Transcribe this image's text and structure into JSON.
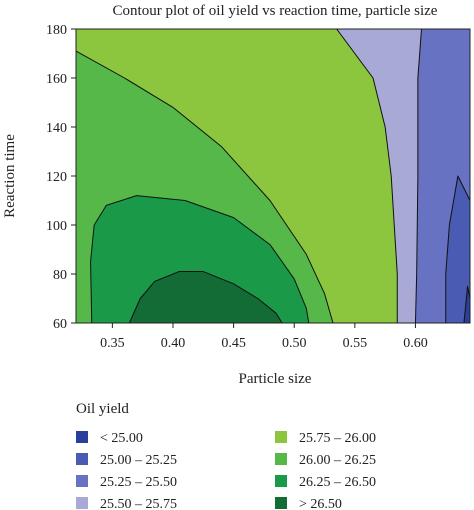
{
  "chart_data": {
    "type": "contour",
    "title": "Contour plot of oil yield vs reaction time, particle size",
    "xlabel": "Particle size",
    "ylabel": "Reaction time",
    "xlim": [
      0.32,
      0.645
    ],
    "ylim": [
      60,
      180
    ],
    "x_ticks": [
      0.35,
      0.4,
      0.45,
      0.5,
      0.55,
      0.6
    ],
    "x_tick_labels": [
      "0.35",
      "0.40",
      "0.45",
      "0.50",
      "0.55",
      "0.60"
    ],
    "y_ticks": [
      60,
      80,
      100,
      120,
      140,
      160,
      180
    ],
    "y_tick_labels": [
      "60",
      "80",
      "100",
      "120",
      "140",
      "160",
      "180"
    ],
    "legend_title": "Oil yield",
    "legend_position": "bottom",
    "levels": [
      {
        "label": "< 25.00",
        "color": "#2a3f9c"
      },
      {
        "label": "25.00 – 25.25",
        "color": "#4a5bb3"
      },
      {
        "label": "25.25 – 25.50",
        "color": "#6872c2"
      },
      {
        "label": "25.50 – 25.75",
        "color": "#a9a9d6"
      },
      {
        "label": "25.75 – 26.00",
        "color": "#8cc63f"
      },
      {
        "label": "26.00 – 26.25",
        "color": "#55b848"
      },
      {
        "label": "26.25 – 26.50",
        "color": "#1a9a48"
      },
      {
        "label": "> 26.50",
        "color": "#136b35"
      }
    ],
    "regions": [
      {
        "level": 4,
        "points": [
          [
            0.32,
            180
          ],
          [
            0.645,
            180
          ],
          [
            0.645,
            60
          ],
          [
            0.32,
            60
          ]
        ]
      },
      {
        "level": 3,
        "points": [
          [
            0.535,
            180
          ],
          [
            0.645,
            180
          ],
          [
            0.645,
            60
          ],
          [
            0.585,
            60
          ],
          [
            0.585,
            80
          ],
          [
            0.58,
            120
          ],
          [
            0.575,
            140
          ],
          [
            0.565,
            160
          ]
        ]
      },
      {
        "level": 2,
        "points": [
          [
            0.605,
            180
          ],
          [
            0.645,
            180
          ],
          [
            0.645,
            60
          ],
          [
            0.6,
            60
          ],
          [
            0.601,
            80
          ],
          [
            0.602,
            120
          ],
          [
            0.602,
            160
          ]
        ]
      },
      {
        "level": 1,
        "points": [
          [
            0.635,
            120
          ],
          [
            0.645,
            110
          ],
          [
            0.645,
            60
          ],
          [
            0.625,
            60
          ],
          [
            0.625,
            80
          ],
          [
            0.628,
            100
          ]
        ]
      },
      {
        "level": 0,
        "points": [
          [
            0.643,
            75
          ],
          [
            0.645,
            70
          ],
          [
            0.645,
            60
          ],
          [
            0.64,
            60
          ]
        ]
      },
      {
        "level": 5,
        "points": [
          [
            0.32,
            171
          ],
          [
            0.36,
            160
          ],
          [
            0.4,
            148
          ],
          [
            0.44,
            132
          ],
          [
            0.48,
            110
          ],
          [
            0.51,
            88
          ],
          [
            0.525,
            72
          ],
          [
            0.532,
            60
          ],
          [
            0.32,
            60
          ]
        ]
      },
      {
        "level": 6,
        "points": [
          [
            0.333,
            60
          ],
          [
            0.332,
            85
          ],
          [
            0.335,
            100
          ],
          [
            0.345,
            108
          ],
          [
            0.37,
            112
          ],
          [
            0.41,
            110
          ],
          [
            0.45,
            103
          ],
          [
            0.48,
            92
          ],
          [
            0.5,
            78
          ],
          [
            0.51,
            66
          ],
          [
            0.512,
            60
          ]
        ]
      },
      {
        "level": 7,
        "points": [
          [
            0.364,
            60
          ],
          [
            0.373,
            70
          ],
          [
            0.385,
            77
          ],
          [
            0.405,
            81
          ],
          [
            0.425,
            81
          ],
          [
            0.45,
            76
          ],
          [
            0.47,
            70
          ],
          [
            0.485,
            64
          ],
          [
            0.49,
            60
          ]
        ]
      }
    ]
  }
}
